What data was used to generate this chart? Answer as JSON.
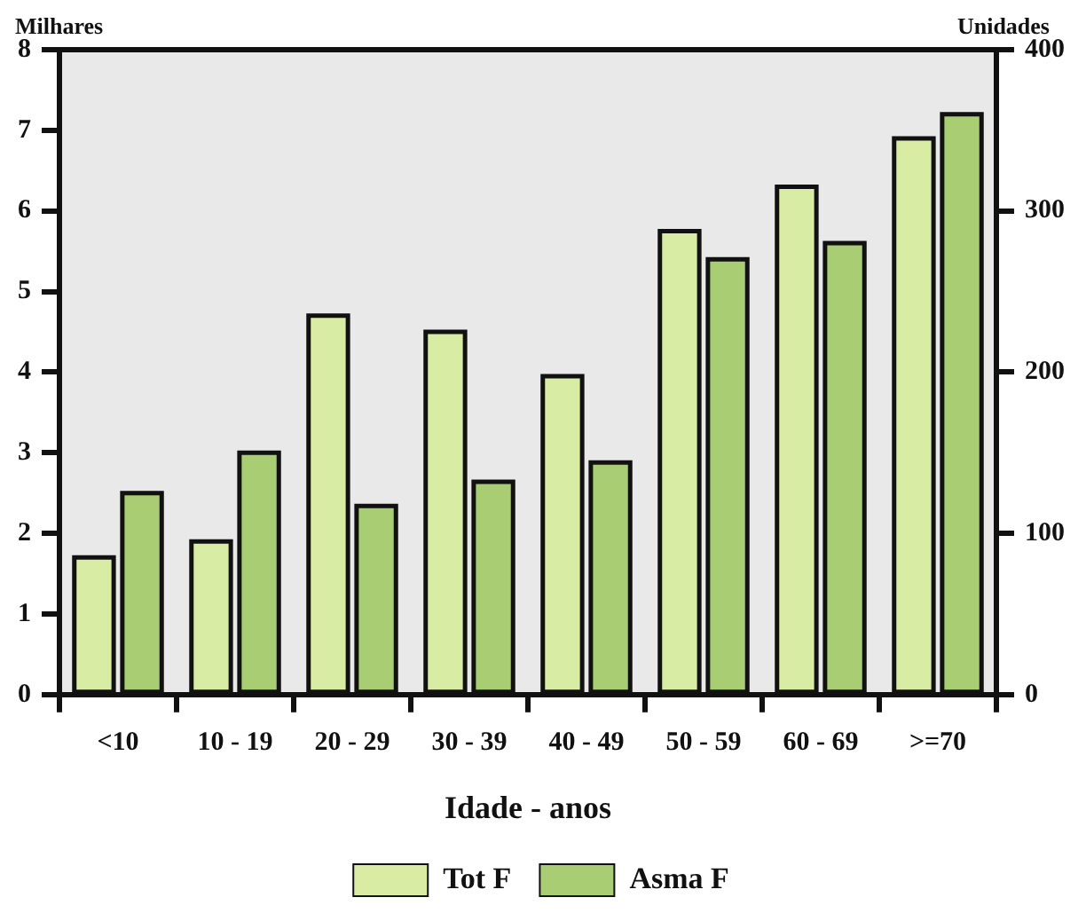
{
  "chart_data": {
    "type": "bar",
    "xlabel": "Idade - anos",
    "ylabel": "Milhares",
    "y2label": "Unidades",
    "categories": [
      "<10",
      "10 - 19",
      "20 - 29",
      "30 - 39",
      "40 - 49",
      "50 - 59",
      "60 - 69",
      ">=70"
    ],
    "series": [
      {
        "name": "Tot F",
        "color": "#d9eca4",
        "values": [
          1.7,
          1.9,
          4.7,
          4.5,
          3.95,
          5.75,
          6.3,
          6.9
        ]
      },
      {
        "name": "Asma F",
        "color": "#a9cd72",
        "axis": "y2",
        "values": [
          125,
          150,
          117,
          132,
          144,
          270,
          280,
          360
        ]
      }
    ],
    "ylim": [
      0,
      8
    ],
    "yticks": [
      0,
      1,
      2,
      3,
      4,
      5,
      6,
      7,
      8
    ],
    "y2lim": [
      0,
      400
    ],
    "y2ticks": [
      0,
      100,
      200,
      300,
      400
    ],
    "legend": "bottom"
  }
}
